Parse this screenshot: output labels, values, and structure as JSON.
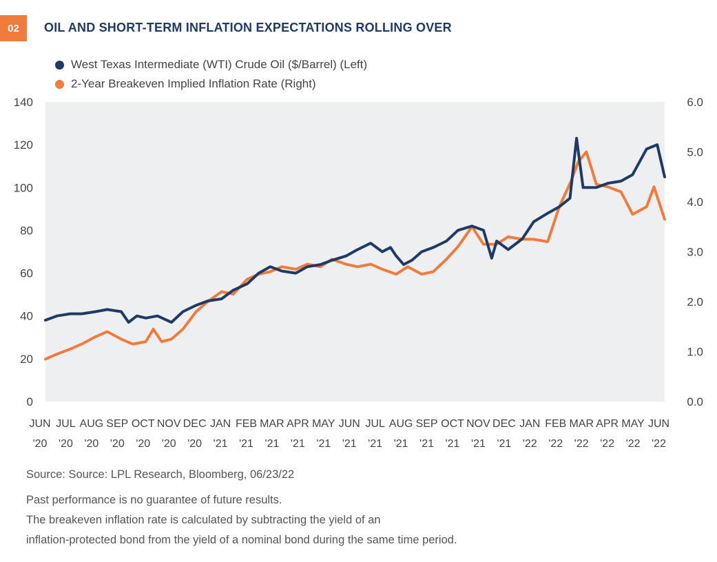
{
  "badge": "02",
  "title": "OIL AND SHORT-TERM INFLATION EXPECTATIONS ROLLING OVER",
  "legend": [
    {
      "label": "West Texas Intermediate (WTI) Crude Oil ($/Barrel) (Left)",
      "color": "#1e3a66"
    },
    {
      "label": "2-Year Breakeven Implied Inflation Rate (Right)",
      "color": "#f07b3a"
    }
  ],
  "notes": {
    "source": "Source: Source: LPL Research, Bloomberg, 06/23/22",
    "disclaimer": "Past performance is no guarantee of future results.",
    "explanation_1": "The breakeven inflation rate is calculated by subtracting the yield of an",
    "explanation_2": "inflation-protected bond from the yield of a nominal bond during the same time period."
  },
  "chart_data": {
    "type": "line",
    "x_tick_labels": [
      [
        "JUN",
        "'20"
      ],
      [
        "JUL",
        "'20"
      ],
      [
        "AUG",
        "'20"
      ],
      [
        "SEP",
        "'20"
      ],
      [
        "OCT",
        "'20"
      ],
      [
        "NOV",
        "'20"
      ],
      [
        "DEC",
        "'20"
      ],
      [
        "JAN",
        "'21"
      ],
      [
        "FEB",
        "'21"
      ],
      [
        "MAR",
        "'21"
      ],
      [
        "APR",
        "'21"
      ],
      [
        "MAY",
        "'21"
      ],
      [
        "JUN",
        "'21"
      ],
      [
        "JUL",
        "'21"
      ],
      [
        "AUG",
        "'21"
      ],
      [
        "SEP",
        "'21"
      ],
      [
        "OCT",
        "'21"
      ],
      [
        "NOV",
        "'21"
      ],
      [
        "DEC",
        "'21"
      ],
      [
        "JAN",
        "'22"
      ],
      [
        "FEB",
        "'22"
      ],
      [
        "MAR",
        "'22"
      ],
      [
        "APR",
        "'22"
      ],
      [
        "MAY",
        "'22"
      ],
      [
        "JUN",
        "'22"
      ]
    ],
    "y_left": {
      "ticks": [
        "0",
        "20",
        "40",
        "60",
        "80",
        "100",
        "120",
        "140"
      ],
      "range": [
        0,
        140
      ]
    },
    "y_right": {
      "ticks": [
        "0.0",
        "1.0",
        "2.0",
        "3.0",
        "4.0",
        "5.0",
        "6.0"
      ],
      "range": [
        0,
        6
      ]
    },
    "series": [
      {
        "name": "West Texas Intermediate (WTI) Crude Oil ($/Barrel) (Left)",
        "axis": "left",
        "color": "#1e3a66",
        "x": [
          "2020-06-01",
          "2020-06-15",
          "2020-07-01",
          "2020-07-15",
          "2020-08-01",
          "2020-08-15",
          "2020-09-01",
          "2020-09-10",
          "2020-09-20",
          "2020-10-01",
          "2020-10-15",
          "2020-11-01",
          "2020-11-15",
          "2020-12-01",
          "2020-12-15",
          "2021-01-01",
          "2021-01-15",
          "2021-02-01",
          "2021-02-15",
          "2021-03-01",
          "2021-03-15",
          "2021-04-01",
          "2021-04-15",
          "2021-05-01",
          "2021-05-15",
          "2021-06-01",
          "2021-06-15",
          "2021-07-01",
          "2021-07-15",
          "2021-07-25",
          "2021-08-01",
          "2021-08-10",
          "2021-08-20",
          "2021-09-01",
          "2021-09-15",
          "2021-10-01",
          "2021-10-15",
          "2021-11-01",
          "2021-11-15",
          "2021-11-25",
          "2021-12-01",
          "2021-12-15",
          "2022-01-01",
          "2022-01-15",
          "2022-02-01",
          "2022-02-15",
          "2022-02-28",
          "2022-03-08",
          "2022-03-16",
          "2022-04-01",
          "2022-04-15",
          "2022-05-01",
          "2022-05-15",
          "2022-06-01",
          "2022-06-14",
          "2022-06-23"
        ],
        "values": [
          38,
          40,
          41,
          41,
          42,
          43,
          42,
          37,
          40,
          39,
          40,
          37,
          42,
          45,
          47,
          48,
          52,
          55,
          60,
          63,
          61,
          60,
          63,
          64,
          66,
          68,
          71,
          74,
          70,
          72,
          68,
          64,
          66,
          70,
          72,
          75,
          80,
          82,
          80,
          67,
          75,
          71,
          76,
          84,
          88,
          91,
          95,
          123,
          100,
          100,
          102,
          103,
          106,
          118,
          120,
          105
        ]
      },
      {
        "name": "2-Year Breakeven Implied Inflation Rate (Right)",
        "axis": "right",
        "color": "#f07b3a",
        "x": [
          "2020-06-01",
          "2020-06-15",
          "2020-07-01",
          "2020-07-15",
          "2020-08-01",
          "2020-08-15",
          "2020-09-01",
          "2020-09-15",
          "2020-10-01",
          "2020-10-10",
          "2020-10-20",
          "2020-11-01",
          "2020-11-15",
          "2020-12-01",
          "2020-12-15",
          "2021-01-01",
          "2021-01-15",
          "2021-02-01",
          "2021-02-15",
          "2021-03-01",
          "2021-03-15",
          "2021-04-01",
          "2021-04-15",
          "2021-05-01",
          "2021-05-15",
          "2021-06-01",
          "2021-06-15",
          "2021-07-01",
          "2021-07-15",
          "2021-08-01",
          "2021-08-15",
          "2021-09-01",
          "2021-09-15",
          "2021-10-01",
          "2021-10-15",
          "2021-11-01",
          "2021-11-15",
          "2021-12-01",
          "2021-12-15",
          "2022-01-01",
          "2022-01-15",
          "2022-02-01",
          "2022-02-15",
          "2022-03-01",
          "2022-03-10",
          "2022-03-20",
          "2022-04-01",
          "2022-04-15",
          "2022-05-01",
          "2022-05-15",
          "2022-06-01",
          "2022-06-10",
          "2022-06-23"
        ],
        "values": [
          0.85,
          0.95,
          1.05,
          1.15,
          1.3,
          1.4,
          1.25,
          1.15,
          1.2,
          1.45,
          1.2,
          1.25,
          1.45,
          1.8,
          2.0,
          2.2,
          2.15,
          2.45,
          2.55,
          2.6,
          2.7,
          2.65,
          2.75,
          2.7,
          2.85,
          2.75,
          2.7,
          2.75,
          2.65,
          2.55,
          2.7,
          2.55,
          2.6,
          2.85,
          3.1,
          3.5,
          3.15,
          3.15,
          3.3,
          3.25,
          3.25,
          3.2,
          3.9,
          4.4,
          4.8,
          5.0,
          4.35,
          4.3,
          4.2,
          3.75,
          3.9,
          4.3,
          3.65
        ]
      }
    ]
  }
}
